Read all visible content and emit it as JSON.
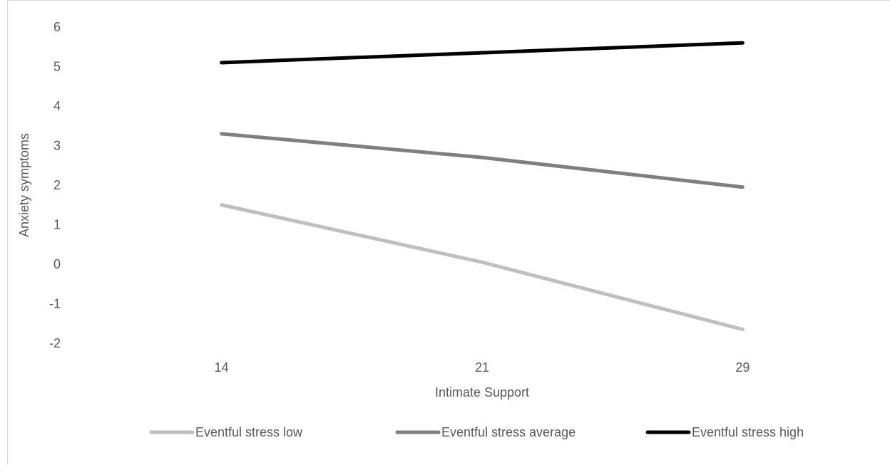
{
  "chart_data": {
    "type": "line",
    "title": "",
    "xlabel": "Intimate Support",
    "ylabel": "Anxiety symptoms",
    "categories": [
      "14",
      "21",
      "29"
    ],
    "y_ticks": [
      "6",
      "5",
      "4",
      "3",
      "2",
      "1",
      "0",
      "-1",
      "-2"
    ],
    "ylim": [
      -2,
      6
    ],
    "grid": false,
    "legend_position": "bottom",
    "series": [
      {
        "name": "Eventful stress low",
        "values": [
          1.5,
          0.05,
          -1.65
        ],
        "color": "#bfbfbf"
      },
      {
        "name": "Eventful stress average",
        "values": [
          3.3,
          2.7,
          1.95
        ],
        "color": "#7f7f7f"
      },
      {
        "name": "Eventful stress high",
        "values": [
          5.1,
          5.35,
          5.6
        ],
        "color": "#000000"
      }
    ]
  }
}
